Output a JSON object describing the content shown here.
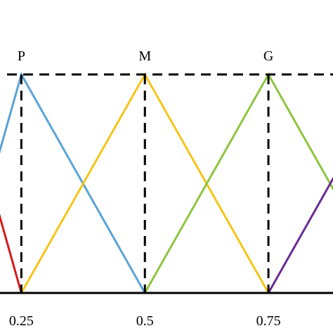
{
  "chart_data": {
    "type": "line",
    "title": "",
    "xlabel": "",
    "ylabel": "",
    "x_tick_labels": [
      {
        "x": 0.25,
        "label": "0.25"
      },
      {
        "x": 0.5,
        "label": "0.5"
      },
      {
        "x": 0.75,
        "label": "0.75"
      }
    ],
    "xlim": [
      0.2068,
      0.8807
    ],
    "ylim": [
      0,
      1
    ],
    "colors": {
      "red": "#d7191c",
      "blue": "#5ba3d6",
      "yellow": "#f5c518",
      "green": "#8cc63f",
      "purple": "#6a2c91",
      "axis": "#000000"
    },
    "series": [
      {
        "color_key": "red",
        "x": [
          0.125,
          0.25
        ],
        "y": [
          1,
          0
        ]
      },
      {
        "color_key": "blue",
        "x": [
          0.125,
          0.25,
          0.5
        ],
        "y": [
          0,
          1,
          0
        ]
      },
      {
        "color_key": "yellow",
        "x": [
          0.25,
          0.5,
          0.75
        ],
        "y": [
          0,
          1,
          0
        ]
      },
      {
        "color_key": "green",
        "x": [
          0.5,
          0.75,
          1.0
        ],
        "y": [
          0,
          1,
          0
        ]
      },
      {
        "color_key": "purple",
        "x": [
          0.75,
          1.0
        ],
        "y": [
          0,
          1
        ]
      }
    ],
    "peak_labels": [
      {
        "x": 0.25,
        "label": "P"
      },
      {
        "x": 0.5,
        "label": "M"
      },
      {
        "x": 0.75,
        "label": "G"
      }
    ],
    "reference_lines": {
      "top_dashed_y": 1,
      "vertical_dashed_x": [
        0.25,
        0.5,
        0.75
      ]
    }
  }
}
